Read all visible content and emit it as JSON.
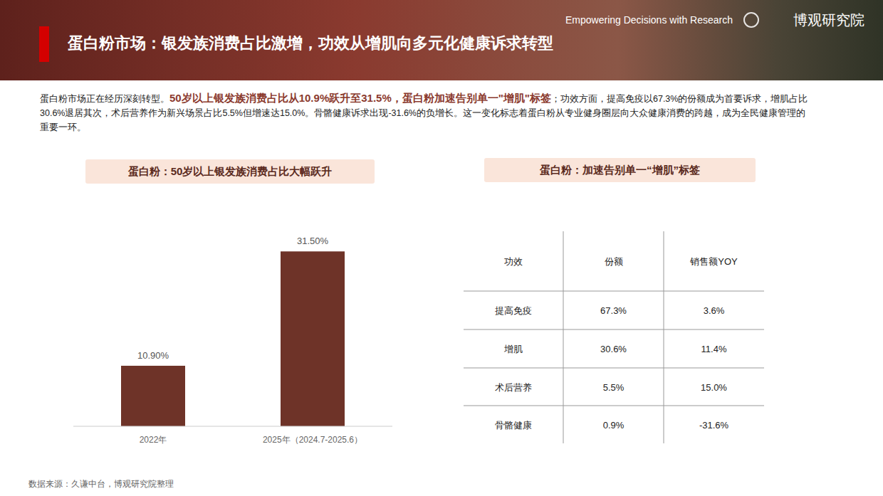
{
  "header": {
    "title": "蛋白粉市场：银发族消费占比激增，功效从增肌向多元化健康诉求转型",
    "tagline": "Empowering Decisions with Research",
    "brand": "博观研究院"
  },
  "intro": {
    "text_1": "蛋白粉市场正在经历深刻转型。",
    "highlight": "50岁以上银发族消费占比从10.9%跃升至31.5%，蛋白粉加速告别单一\"增肌\"标签",
    "text_2": "；功效方面，提高免疫以67.3%的份额成为首要诉求，增肌占比30.6%退居其次，术后营养作为新兴场景占比5.5%但增速达15.0%。骨骼健康诉求出现-31.6%的负增长。这一变化标志着蛋白粉从专业健身圈层向大众健康消费的跨越，成为全民健康管理的重要一环。"
  },
  "chart_data": {
    "type": "bar",
    "title": "蛋白粉：50岁以上银发族消费占比大幅跃升",
    "categories": [
      "2022年",
      "2025年（2024.7-2025.6）"
    ],
    "values": [
      10.9,
      31.5
    ],
    "value_labels": [
      "10.90%",
      "31.50%"
    ],
    "color": "#6e3328",
    "ylim": [
      0,
      40
    ],
    "data_labels": true,
    "tick_labels": "x"
  },
  "table": {
    "title": "蛋白粉：加速告别单一“增肌”标签",
    "columns": [
      "功效",
      "份额",
      "销售额YOY"
    ],
    "rows": [
      [
        "提高免疫",
        "67.3%",
        "3.6%"
      ],
      [
        "增肌",
        "30.6%",
        "11.4%"
      ],
      [
        "术后营养",
        "5.5%",
        "15.0%"
      ],
      [
        "骨骼健康",
        "0.9%",
        "-31.6%"
      ]
    ]
  },
  "source": "数据来源：久谦中台，博观研究院整理"
}
